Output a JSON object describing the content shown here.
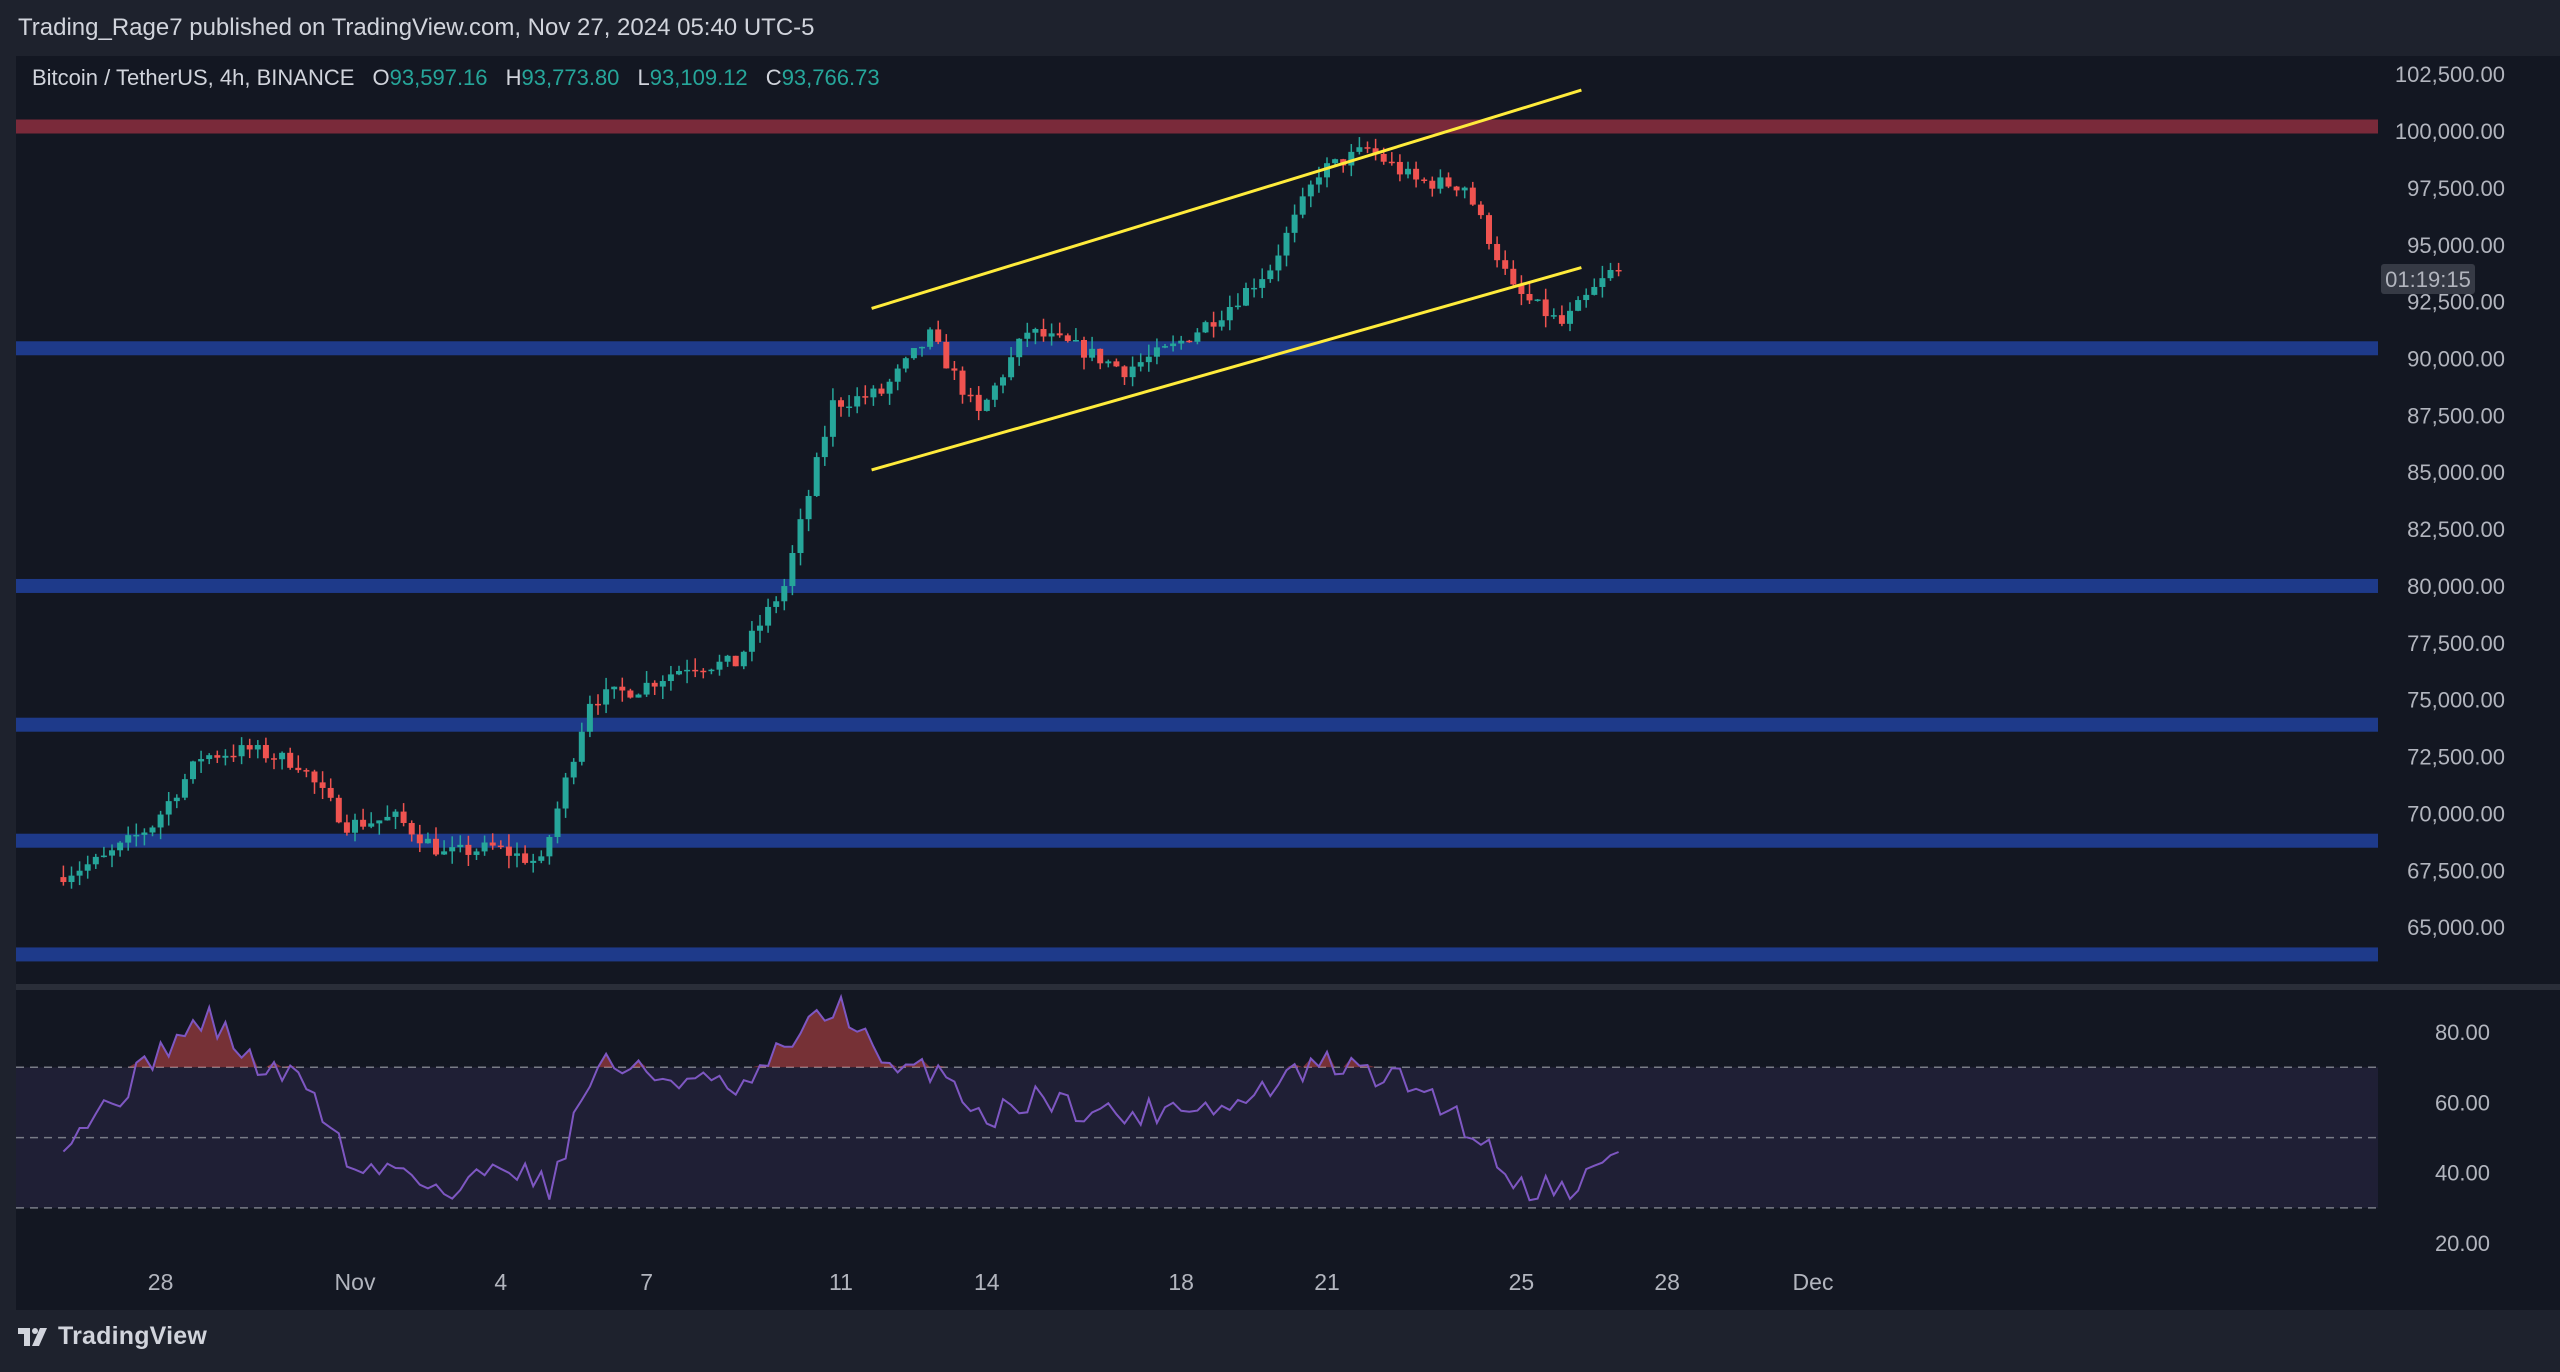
{
  "header": {
    "published": "Trading_Rage7 published on TradingView.com, Nov 27, 2024 05:40 UTC-5"
  },
  "legend": {
    "symbol": "Bitcoin / TetherUS, 4h, BINANCE",
    "open_key": "O",
    "open": "93,597.16",
    "high_key": "H",
    "high": "93,773.80",
    "low_key": "L",
    "low": "93,109.12",
    "close_key": "C",
    "close": "93,766.73"
  },
  "countdown": "01:19:15",
  "footer": {
    "brand": "TradingView"
  },
  "colors": {
    "background": "#131722",
    "up": "#26a69a",
    "down": "#ef5350",
    "support": "#1e3a8a",
    "resistance": "#7a2a3a",
    "channel": "#ffeb3b",
    "rsi": "#7e57c2"
  },
  "chart_data": [
    {
      "type": "candlestick",
      "title": "Bitcoin / TetherUS, 4h, BINANCE",
      "timeframe": "4h",
      "ylim": [
        62500,
        103300
      ],
      "y_ticks": [
        102500,
        100000,
        97500,
        95000,
        92500,
        90000,
        87500,
        85000,
        82500,
        80000,
        77500,
        75000,
        72500,
        70000,
        67500,
        65000
      ],
      "y_tick_labels": [
        "102,500.00",
        "100,000.00",
        "97,500.00",
        "95,000.00",
        "92,500.00",
        "90,000.00",
        "87,500.00",
        "85,000.00",
        "82,500.00",
        "80,000.00",
        "77,500.00",
        "75,000.00",
        "72,500.00",
        "70,000.00",
        "67,500.00",
        "65,000.00"
      ],
      "x_ticks": [
        "28",
        "Nov",
        "4",
        "7",
        "11",
        "14",
        "18",
        "21",
        "25",
        "28",
        "Dec"
      ],
      "last_price": "93,766.73",
      "horizontal_levels": [
        {
          "kind": "resistance",
          "value": 100200
        },
        {
          "kind": "support",
          "value": 90450
        },
        {
          "kind": "support",
          "value": 80000
        },
        {
          "kind": "support",
          "value": 73900
        },
        {
          "kind": "support",
          "value": 68800
        },
        {
          "kind": "support",
          "value": 63800
        }
      ],
      "channel": {
        "upper": {
          "from": [
            "Nov 12",
            92200
          ],
          "to": [
            "Nov 25",
            101800
          ]
        },
        "lower": {
          "from": [
            "Nov 12",
            85100
          ],
          "to": [
            "Nov 25",
            94000
          ]
        }
      },
      "price_path": [
        [
          "Oct 26",
          67200
        ],
        [
          "Oct 27",
          68000
        ],
        [
          "Oct 28",
          69500
        ],
        [
          "Oct 29",
          72500
        ],
        [
          "Oct 30",
          72800
        ],
        [
          "Oct 31",
          72200
        ],
        [
          "Nov 1",
          69500
        ],
        [
          "Nov 2",
          69800
        ],
        [
          "Nov 3",
          68200
        ],
        [
          "Nov 4",
          68500
        ],
        [
          "Nov 5",
          67800
        ],
        [
          "Nov 6",
          75000
        ],
        [
          "Nov 7",
          75500
        ],
        [
          "Nov 8",
          76500
        ],
        [
          "Nov 9",
          76600
        ],
        [
          "Nov 10",
          80000
        ],
        [
          "Nov 11",
          88000
        ],
        [
          "Nov 12",
          88500
        ],
        [
          "Nov 13",
          91000
        ],
        [
          "Nov 14",
          87500
        ],
        [
          "Nov 15",
          91200
        ],
        [
          "Nov 16",
          90500
        ],
        [
          "Nov 17",
          89500
        ],
        [
          "Nov 18",
          90500
        ],
        [
          "Nov 19",
          92000
        ],
        [
          "Nov 20",
          94000
        ],
        [
          "Nov 21",
          98200
        ],
        [
          "Nov 22",
          99200
        ],
        [
          "Nov 23",
          97800
        ],
        [
          "Nov 24",
          97600
        ],
        [
          "Nov 25",
          93000
        ],
        [
          "Nov 26",
          91500
        ],
        [
          "Nov 27",
          93766
        ]
      ]
    },
    {
      "type": "line",
      "title": "",
      "ylim": [
        18,
        92
      ],
      "y_ticks": [
        80,
        60,
        40,
        20
      ],
      "y_tick_labels": [
        "80.00",
        "60.00",
        "40.00",
        "20.00"
      ],
      "bands": [
        70,
        50,
        30
      ],
      "rsi_path": [
        [
          "Oct 26",
          50
        ],
        [
          "Oct 27",
          60
        ],
        [
          "Oct 28",
          75
        ],
        [
          "Oct 29",
          84
        ],
        [
          "Oct 30",
          70
        ],
        [
          "Oct 31",
          66
        ],
        [
          "Nov 1",
          40
        ],
        [
          "Nov 2",
          42
        ],
        [
          "Nov 3",
          33
        ],
        [
          "Nov 4",
          44
        ],
        [
          "Nov 5",
          36
        ],
        [
          "Nov 6",
          72
        ],
        [
          "Nov 7",
          68
        ],
        [
          "Nov 8",
          66
        ],
        [
          "Nov 9",
          63
        ],
        [
          "Nov 10",
          78
        ],
        [
          "Nov 11",
          88
        ],
        [
          "Nov 12",
          68
        ],
        [
          "Nov 13",
          70
        ],
        [
          "Nov 14",
          55
        ],
        [
          "Nov 15",
          62
        ],
        [
          "Nov 16",
          58
        ],
        [
          "Nov 17",
          56
        ],
        [
          "Nov 18",
          60
        ],
        [
          "Nov 19",
          58
        ],
        [
          "Nov 20",
          66
        ],
        [
          "Nov 21",
          71
        ],
        [
          "Nov 22",
          68
        ],
        [
          "Nov 23",
          64
        ],
        [
          "Nov 24",
          52
        ],
        [
          "Nov 25",
          36
        ],
        [
          "Nov 26",
          36
        ],
        [
          "Nov 27",
          45
        ]
      ]
    }
  ]
}
